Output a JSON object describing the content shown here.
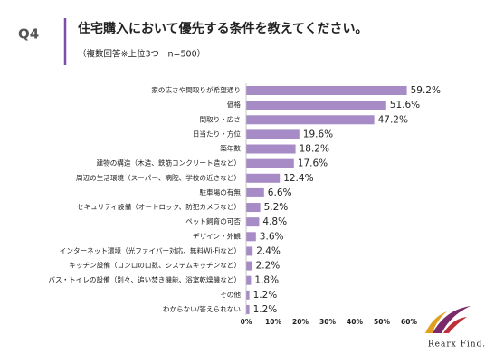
{
  "header": {
    "label": "Q4",
    "title": "住宅購入において優先する条件を教えてください。",
    "subtitle": "（複数回答※上位3つ　n=500）"
  },
  "logo": "Rearx Find.",
  "chart_data": {
    "type": "bar",
    "orientation": "horizontal",
    "color": "#a68bc7",
    "grid": false,
    "categories": [
      "家の広さや間取りが希望通り",
      "価格",
      "間取り・広さ",
      "日当たり・方位",
      "築年数",
      "建物の構造（木造、鉄筋コンクリート造など）",
      "周辺の生活環境（スーパー、病院、学校の近さなど）",
      "駐車場の有無",
      "セキュリティ設備（オートロック、防犯カメラなど）",
      "ペット飼育の可否",
      "デザイン・外観",
      "インターネット環境（光ファイバー対応、無料Wi-Fiなど）",
      "キッチン設備（コンロの口数、システムキッチンなど）",
      "バス・トイレの設備（別々、追い焚き機能、浴室乾燥機など）",
      "その他",
      "わからない/答えられない"
    ],
    "values": [
      59.2,
      51.6,
      47.2,
      19.6,
      18.2,
      17.6,
      12.4,
      6.6,
      5.2,
      4.8,
      3.6,
      2.4,
      2.2,
      1.8,
      1.2,
      1.2
    ],
    "value_labels": [
      "59.2%",
      "51.6%",
      "47.2%",
      "19.6%",
      "18.2%",
      "17.6%",
      "12.4%",
      "6.6%",
      "5.2%",
      "4.8%",
      "3.6%",
      "2.4%",
      "2.2%",
      "1.8%",
      "1.2%",
      "1.2%"
    ],
    "xlim": [
      0,
      60
    ],
    "xticks": [
      {
        "value": 0,
        "label": "0%"
      },
      {
        "value": 10,
        "label": "10%"
      },
      {
        "value": 20,
        "label": "20%"
      },
      {
        "value": 30,
        "label": "30%"
      },
      {
        "value": 40,
        "label": "40%"
      },
      {
        "value": 50,
        "label": "50%"
      },
      {
        "value": 60,
        "label": "60%"
      }
    ]
  }
}
